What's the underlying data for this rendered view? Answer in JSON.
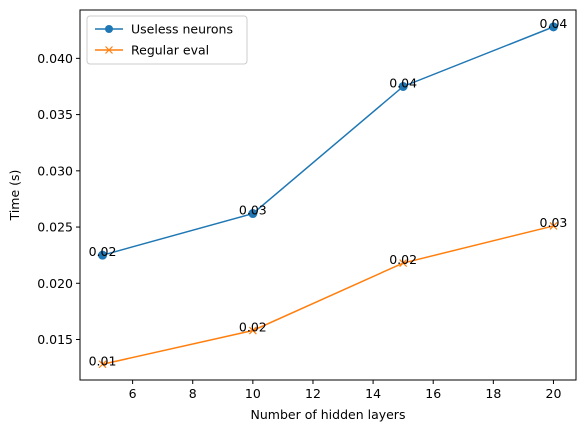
{
  "chart_data": {
    "type": "line",
    "title": "",
    "xlabel": "Number of hidden layers",
    "ylabel": "Time (s)",
    "x": [
      5,
      10,
      15,
      20
    ],
    "xlim": [
      4.25,
      20.75
    ],
    "ylim": [
      0.0114,
      0.0443
    ],
    "xticks": [
      6,
      8,
      10,
      12,
      14,
      16,
      18,
      20
    ],
    "xtick_labels": [
      "6",
      "8",
      "10",
      "12",
      "14",
      "16",
      "18",
      "20"
    ],
    "yticks": [
      0.015,
      0.02,
      0.025,
      0.03,
      0.035,
      0.04
    ],
    "ytick_labels": [
      "0.015",
      "0.020",
      "0.025",
      "0.030",
      "0.035",
      "0.040"
    ],
    "grid": false,
    "legend_position": "top-left",
    "series": [
      {
        "name": "Useless neurons",
        "marker": "circle",
        "color": "#1f77b4",
        "values": [
          0.0225,
          0.0262,
          0.0375,
          0.0428
        ],
        "point_labels": [
          "0.02",
          "0.03",
          "0.04",
          "0.04"
        ]
      },
      {
        "name": "Regular eval",
        "marker": "x",
        "color": "#ff7f0e",
        "values": [
          0.0128,
          0.0158,
          0.0218,
          0.0251
        ],
        "point_labels": [
          "0.01",
          "0.02",
          "0.02",
          "0.03"
        ]
      }
    ]
  }
}
